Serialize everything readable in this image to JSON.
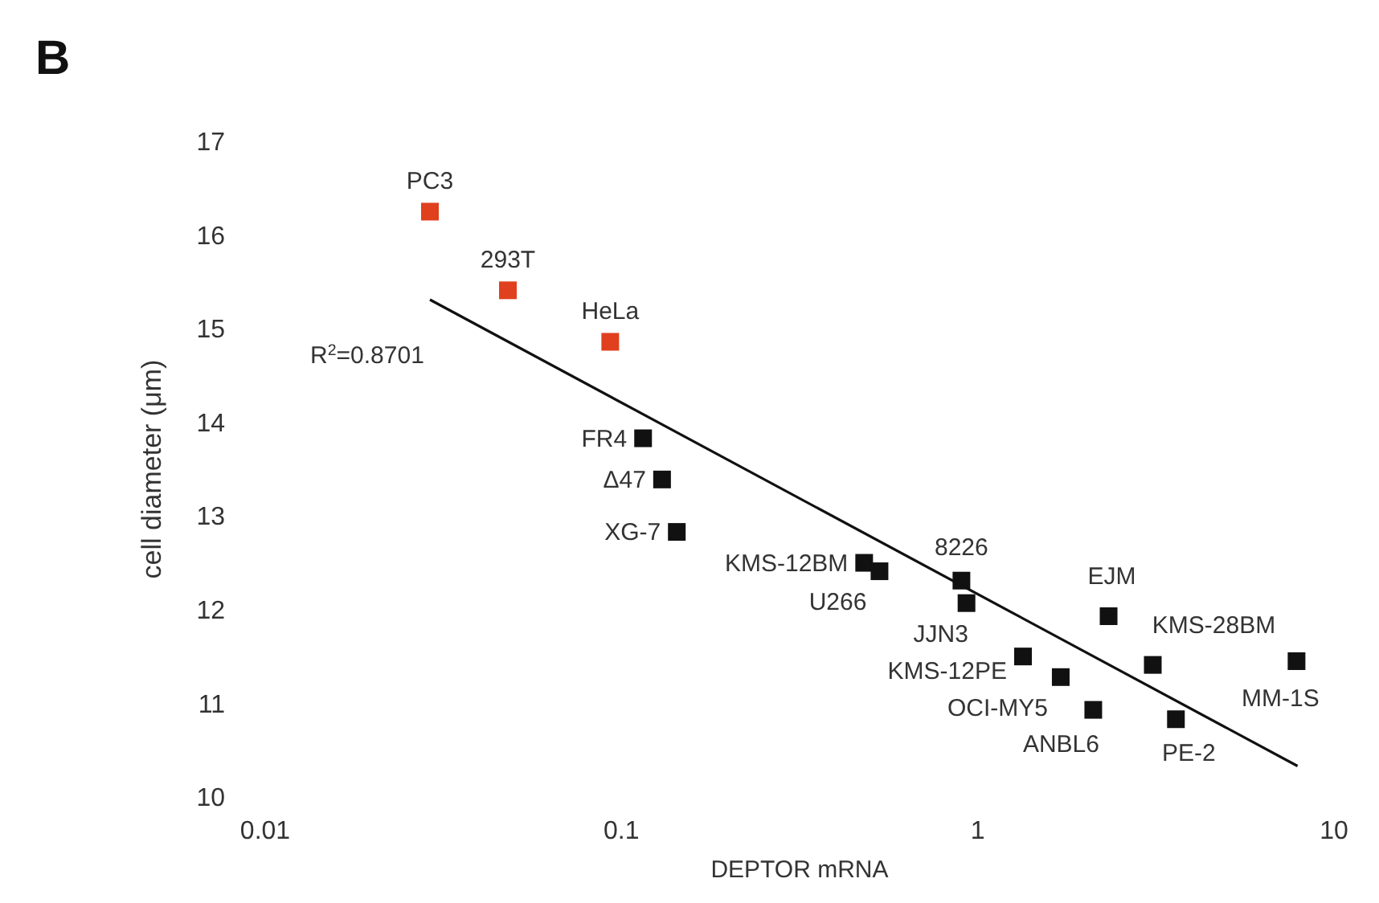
{
  "chart_data": {
    "type": "scatter",
    "title": "B",
    "xlabel": "DEPTOR mRNA",
    "ylabel": "cell diameter (μm)",
    "log": "x",
    "xlim": [
      0.01,
      10
    ],
    "xticks": [
      0.01,
      0.1,
      1,
      10
    ],
    "ylim": [
      10,
      17
    ],
    "yticks": [
      10,
      11,
      12,
      13,
      14,
      15,
      16,
      17
    ],
    "grid": false,
    "marker": "square",
    "series": [
      {
        "color": "#e0401e",
        "x": [
          0.029,
          0.048,
          0.093
        ],
        "values": [
          16.25,
          15.41,
          14.86
        ]
      },
      {
        "color": "#111111",
        "x": [
          0.115,
          0.13,
          0.143,
          0.48,
          0.53,
          0.9,
          0.93,
          2.33,
          1.34,
          1.71,
          3.1,
          7.85,
          2.11,
          3.6
        ],
        "values": [
          13.83,
          13.39,
          12.83,
          12.5,
          12.41,
          12.31,
          12.07,
          11.93,
          11.5,
          11.28,
          11.41,
          11.45,
          10.93,
          10.83
        ]
      },
      {
        "type": "line",
        "color": "#111111",
        "marker": "none",
        "x": [
          0.029,
          7.9
        ],
        "values": [
          15.31,
          10.33
        ]
      }
    ],
    "annotations": [
      {
        "text": "PC3",
        "x": 0.029,
        "y": 16.25
      },
      {
        "text": "293T",
        "x": 0.048,
        "y": 15.41
      },
      {
        "text": "HeLa",
        "x": 0.093,
        "y": 14.86
      },
      {
        "text": "FR4",
        "x": 0.115,
        "y": 13.83
      },
      {
        "text": "Δ47",
        "x": 0.13,
        "y": 13.39
      },
      {
        "text": "XG-7",
        "x": 0.143,
        "y": 12.83
      },
      {
        "text": "KMS-12BM",
        "x": 0.48,
        "y": 12.5
      },
      {
        "text": "U266",
        "x": 0.53,
        "y": 12.41
      },
      {
        "text": "8226",
        "x": 0.9,
        "y": 12.31
      },
      {
        "text": "JJN3",
        "x": 0.93,
        "y": 12.07
      },
      {
        "text": "EJM",
        "x": 2.33,
        "y": 11.93
      },
      {
        "text": "KMS-12PE",
        "x": 1.34,
        "y": 11.5
      },
      {
        "text": "OCI-MY5",
        "x": 1.71,
        "y": 11.28
      },
      {
        "text": "KMS-28BM",
        "x": 3.1,
        "y": 11.41
      },
      {
        "text": "MM-1S",
        "x": 7.85,
        "y": 11.45
      },
      {
        "text": "ANBL6",
        "x": 2.11,
        "y": 10.93
      },
      {
        "text": "PE-2",
        "x": 3.6,
        "y": 10.83
      },
      "R$^{2}$=0.8701"
    ]
  }
}
